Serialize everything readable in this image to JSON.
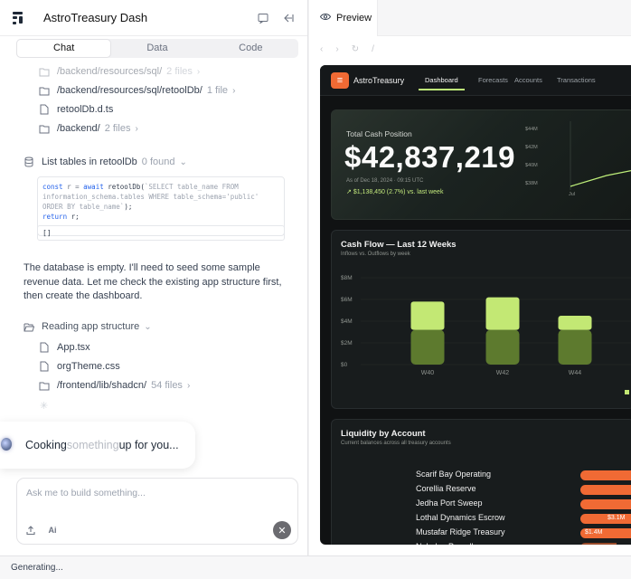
{
  "app": {
    "title": "AstroTreasury Dash"
  },
  "tabs": [
    {
      "label": "Chat",
      "active": true
    },
    {
      "label": "Data",
      "active": false
    },
    {
      "label": "Code",
      "active": false
    }
  ],
  "chat": {
    "files_top": [
      {
        "name": "/backend/resources/sql/",
        "meta": "2 files",
        "type": "folder"
      },
      {
        "name": "/backend/resources/sql/retoolDb/",
        "meta": "1 file",
        "type": "folder"
      },
      {
        "name": "retoolDb.d.ts",
        "meta": "",
        "type": "file"
      },
      {
        "name": "/backend/",
        "meta": "2 files",
        "type": "folder"
      }
    ],
    "tool_call": {
      "label": "List tables in retoolDb",
      "meta": "0 found"
    },
    "code": {
      "line1_kw1": "const",
      "line1_var": "r",
      "line1_eq": "=",
      "line1_kw2": "await",
      "line1_fn": "retoolDb(",
      "line1_str": "`SELECT table_name FROM",
      "line2_str": "information_schema.tables WHERE table_schema='public'",
      "line3_str": "ORDER BY table_name`",
      "line3_end": ");",
      "line4_kw": "return",
      "line4_rest": "r;"
    },
    "result": "[]",
    "message": "The database is empty. I'll need to seed some sample revenue data. Let me check the existing app structure first, then create the dashboard.",
    "reading": {
      "label": "Reading app structure"
    },
    "files_bottom": [
      {
        "name": "App.tsx",
        "meta": "",
        "type": "file"
      },
      {
        "name": "orgTheme.css",
        "meta": "",
        "type": "file"
      },
      {
        "name": "/frontend/lib/shadcn/",
        "meta": "54 files",
        "type": "folder"
      }
    ],
    "cooking": {
      "lead": "Cooking ",
      "dim": "something",
      "tail": " up for you..."
    },
    "input_placeholder": "Ask me to build something..."
  },
  "status": "Generating...",
  "preview": {
    "tab_label": "Preview",
    "nav_path": "/",
    "dashboard": {
      "brand": "AstroTreasury",
      "tabs": [
        {
          "label": "Dashboard",
          "active": true
        },
        {
          "label": "Forecasts",
          "active": false
        },
        {
          "label": "Accounts",
          "active": false
        },
        {
          "label": "Transactions",
          "active": false
        }
      ],
      "hero": {
        "label": "Total Cash Position",
        "value": "$42,837,219",
        "asof": "As of Dec 18, 2024 · 09:15 UTC",
        "change": "$1,138,450 (2.7%) vs. last week",
        "axis_ticks": [
          "$44M",
          "$42M",
          "$40M",
          "$38M"
        ],
        "axis_x": "Jul"
      },
      "cash_flow": {
        "title": "Cash Flow — Last 12 Weeks",
        "subtitle": "Inflows vs. Outflows by week"
      },
      "liquidity": {
        "title": "Liquidity by Account",
        "subtitle": "Current balances across all treasury accounts",
        "accounts": [
          {
            "name": "Scarif Bay Operating",
            "label": ""
          },
          {
            "name": "Corellia Reserve",
            "label": ""
          },
          {
            "name": "Jedha Port Sweep",
            "label": ""
          },
          {
            "name": "Lothal Dynamics Escrow",
            "label": "$3.1M"
          },
          {
            "name": "Mustafar Ridge Treasury",
            "label": "$1.4M"
          },
          {
            "name": "Nebulon Payroll",
            "label": ""
          }
        ]
      }
    }
  },
  "chart_data": {
    "type": "bar",
    "title": "Cash Flow — Last 12 Weeks",
    "subtitle": "Inflows vs. Outflows by week",
    "categories": [
      "W40",
      "W42",
      "W44"
    ],
    "series": [
      {
        "values": [
          2.6,
          3.0,
          1.3
        ]
      },
      {
        "values": [
          3.2,
          3.2,
          3.2
        ]
      }
    ],
    "y_ticks": [
      "$8M",
      "$6M",
      "$4M",
      "$2M",
      "$0"
    ],
    "ylim": [
      0,
      8
    ],
    "colors": [
      "#c3e874",
      "#5d7a2e"
    ]
  }
}
